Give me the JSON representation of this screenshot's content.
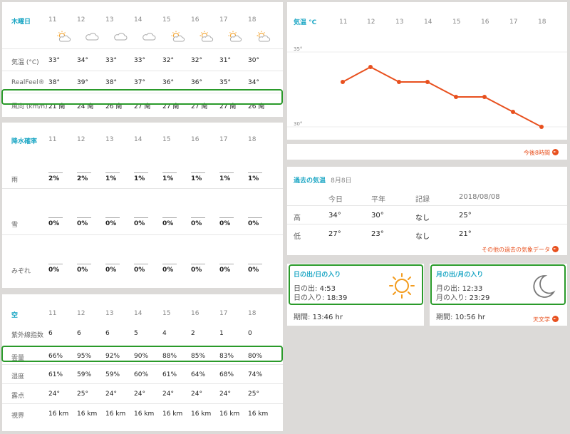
{
  "hours": [
    "11",
    "12",
    "13",
    "14",
    "15",
    "16",
    "17",
    "18"
  ],
  "panel1": {
    "title": "木曜日",
    "icons": [
      "partly-sunny-icon",
      "cloud-icon",
      "cloud-icon",
      "cloud-icon",
      "partly-sunny-icon",
      "partly-sunny-icon",
      "partly-sunny-icon",
      "partly-sunny-icon"
    ],
    "rows": [
      {
        "label": "気温 (°C)",
        "values": [
          "33°",
          "34°",
          "33°",
          "33°",
          "32°",
          "32°",
          "31°",
          "30°"
        ]
      },
      {
        "label": "RealFeel®",
        "values": [
          "38°",
          "39°",
          "38°",
          "37°",
          "36°",
          "36°",
          "35°",
          "34°"
        ]
      },
      {
        "label": "風向 (km/h)",
        "values": [
          "21 南",
          "24 南",
          "26 南",
          "27 南",
          "27 南",
          "27 南",
          "27 南",
          "26 南"
        ]
      }
    ]
  },
  "panel2": {
    "title": "降水確率",
    "rows": [
      {
        "label": "雨",
        "values": [
          "2%",
          "2%",
          "1%",
          "1%",
          "1%",
          "1%",
          "1%",
          "1%"
        ]
      },
      {
        "label": "雪",
        "values": [
          "0%",
          "0%",
          "0%",
          "0%",
          "0%",
          "0%",
          "0%",
          "0%"
        ]
      },
      {
        "label": "みぞれ",
        "values": [
          "0%",
          "0%",
          "0%",
          "0%",
          "0%",
          "0%",
          "0%",
          "0%"
        ]
      }
    ]
  },
  "panel3": {
    "title": "空",
    "rows": [
      {
        "label": "紫外線指数",
        "values": [
          "6",
          "6",
          "6",
          "5",
          "4",
          "2",
          "1",
          "0"
        ]
      },
      {
        "label": "雲量",
        "values": [
          "66%",
          "95%",
          "92%",
          "90%",
          "88%",
          "85%",
          "83%",
          "80%"
        ]
      },
      {
        "label": "湿度",
        "values": [
          "61%",
          "59%",
          "59%",
          "60%",
          "61%",
          "64%",
          "68%",
          "74%"
        ]
      },
      {
        "label": "露点",
        "values": [
          "24°",
          "25°",
          "24°",
          "24°",
          "24°",
          "24°",
          "24°",
          "25°"
        ]
      },
      {
        "label": "視界",
        "values": [
          "16 km",
          "16 km",
          "16 km",
          "16 km",
          "16 km",
          "16 km",
          "16 km",
          "16 km"
        ]
      }
    ]
  },
  "chart_data": {
    "type": "line",
    "title": "気温 °C",
    "x": [
      "11",
      "12",
      "13",
      "14",
      "15",
      "16",
      "17",
      "18"
    ],
    "values": [
      33,
      34,
      33,
      33,
      32,
      32,
      31,
      30
    ],
    "yticks": [
      "35°",
      "30°"
    ],
    "ylim": [
      30,
      35
    ],
    "color": "#e8501e",
    "link": "今後8時間"
  },
  "past": {
    "title": "過去の気温",
    "date": "8月8日",
    "headers": [
      "今日",
      "平年",
      "記録",
      "2018/08/08"
    ],
    "rows": [
      {
        "label": "高",
        "values": [
          "34°",
          "30°",
          "なし",
          "25°"
        ]
      },
      {
        "label": "低",
        "values": [
          "27°",
          "23°",
          "なし",
          "21°"
        ]
      }
    ],
    "link": "その他の過去の気象データ"
  },
  "sun": {
    "title": "日の出/日の入り",
    "rise_label": "日の出:",
    "rise": "4:53",
    "set_label": "日の入り:",
    "set": "18:39",
    "duration_label": "期間:",
    "duration": "13:46 hr"
  },
  "moon": {
    "title": "月の出/月の入り",
    "rise_label": "月の出:",
    "rise": "12:33",
    "set_label": "月の入り:",
    "set": "23:29",
    "duration_label": "期間:",
    "duration": "10:56 hr",
    "link": "天文学"
  }
}
